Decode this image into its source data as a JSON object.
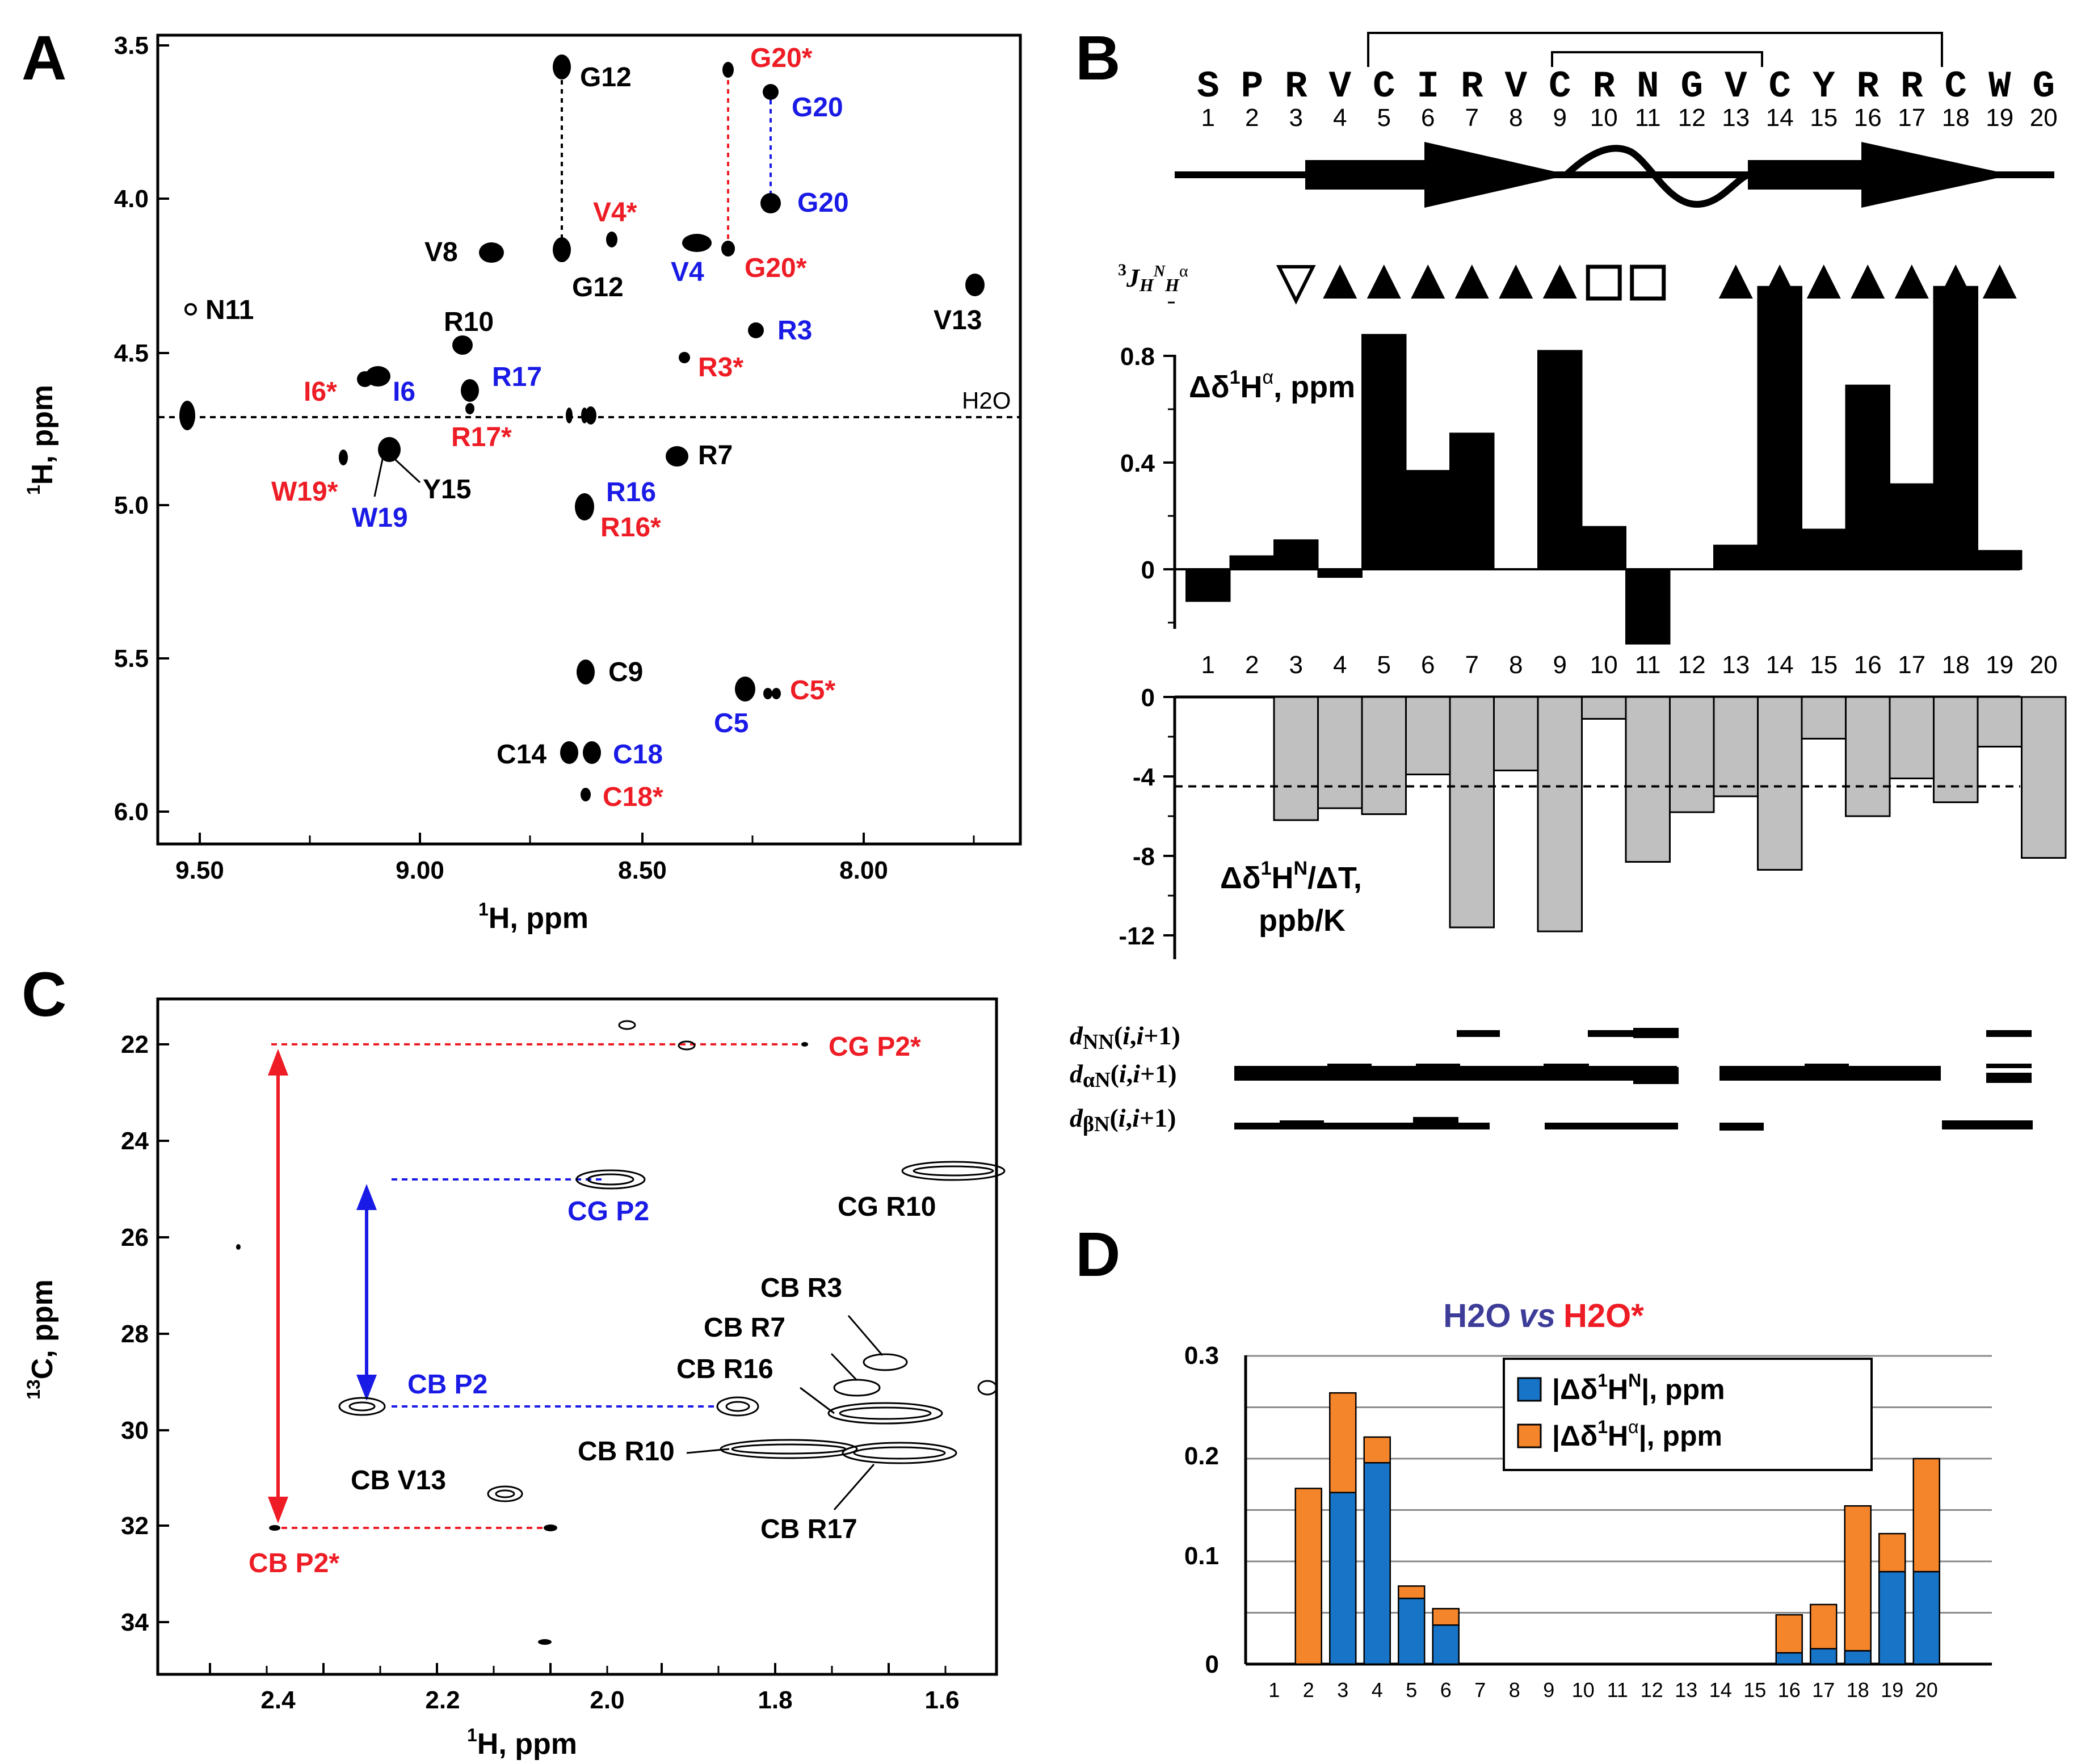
{
  "panels": {
    "A": "A",
    "B": "B",
    "C": "C",
    "D": "D"
  },
  "colors": {
    "black": "#000000",
    "blue": "#1a1ae6",
    "red": "#ee1c25",
    "gray": "#c0c0c0",
    "orange": "#f5852a",
    "steelblue": "#1874c6",
    "darkblue": "#3d3d99"
  },
  "panel_a": {
    "x_label_pre": "1",
    "x_label": "H, ppm",
    "y_label_pre": "1",
    "y_label": "H, ppm",
    "x_ticks": [
      "9.50",
      "9.00",
      "8.50",
      "8.00"
    ],
    "y_ticks": [
      "3.5",
      "4.0",
      "4.5",
      "5.0",
      "5.5",
      "6.0"
    ],
    "water": "H2O",
    "peak_labels": [
      {
        "t": "G12",
        "c": "black"
      },
      {
        "t": "G20*",
        "c": "red"
      },
      {
        "t": "G20",
        "c": "blue"
      },
      {
        "t": "G20",
        "c": "blue"
      },
      {
        "t": "V4*",
        "c": "red"
      },
      {
        "t": "V8",
        "c": "black"
      },
      {
        "t": "G12",
        "c": "black"
      },
      {
        "t": "V4",
        "c": "blue"
      },
      {
        "t": "G20*",
        "c": "red"
      },
      {
        "t": "N11",
        "c": "black"
      },
      {
        "t": "V13",
        "c": "black"
      },
      {
        "t": "R10",
        "c": "black"
      },
      {
        "t": "R3",
        "c": "blue"
      },
      {
        "t": "R3*",
        "c": "red"
      },
      {
        "t": "I6*",
        "c": "red"
      },
      {
        "t": "I6",
        "c": "blue"
      },
      {
        "t": "R17",
        "c": "blue"
      },
      {
        "t": "R17*",
        "c": "red"
      },
      {
        "t": "R7",
        "c": "black"
      },
      {
        "t": "W19*",
        "c": "red"
      },
      {
        "t": "Y15",
        "c": "black"
      },
      {
        "t": "W19",
        "c": "blue"
      },
      {
        "t": "R16",
        "c": "blue"
      },
      {
        "t": "R16*",
        "c": "red"
      },
      {
        "t": "C9",
        "c": "black"
      },
      {
        "t": "C5*",
        "c": "red"
      },
      {
        "t": "C5",
        "c": "blue"
      },
      {
        "t": "C14",
        "c": "black"
      },
      {
        "t": "C18",
        "c": "blue"
      },
      {
        "t": "C18*",
        "c": "red"
      }
    ]
  },
  "panel_b": {
    "sequence": [
      "S",
      "P",
      "R",
      "V",
      "C",
      "I",
      "R",
      "V",
      "C",
      "R",
      "N",
      "G",
      "V",
      "C",
      "Y",
      "R",
      "R",
      "C",
      "W",
      "G"
    ],
    "numbers": [
      "1",
      "2",
      "3",
      "4",
      "5",
      "6",
      "7",
      "8",
      "9",
      "10",
      "11",
      "12",
      "13",
      "14",
      "15",
      "16",
      "17",
      "18",
      "19",
      "20"
    ],
    "j_label": {
      "pre": "3",
      "j": "J",
      "h": "H",
      "n": "N",
      "h2": "H",
      "alpha": "α"
    },
    "j_symbols": [
      "",
      "",
      "open-down-triangle",
      "up-triangle",
      "up-triangle",
      "up-triangle",
      "up-triangle",
      "up-triangle",
      "up-triangle",
      "open-square",
      "open-square",
      "",
      "up-triangle",
      "up-triangle",
      "up-triangle",
      "up-triangle",
      "up-triangle",
      "up-triangle",
      "up-triangle",
      ""
    ],
    "ha_title": {
      "delta": "Δδ",
      "sup1": "1",
      "h": "H",
      "alpha": "α",
      "unit": ", ppm"
    },
    "ha_ticks": [
      "0.8",
      "0.4",
      "0"
    ],
    "hn_title_line1": {
      "delta": "Δδ",
      "sup1": "1",
      "h": "H",
      "n": "N",
      "rest": "/ΔT,"
    },
    "hn_title_line2": "ppb/K",
    "hn_ticks": [
      "0",
      "-4",
      "-8",
      "-12"
    ],
    "noe_labels": [
      {
        "d": "d",
        "sub": "NN",
        "rest": "(",
        "i1": "i",
        "mid": ",",
        "i2": "i",
        "end": "+1)"
      },
      {
        "d": "d",
        "sub": "αN",
        "rest": "(",
        "i1": "i",
        "mid": ",",
        "i2": "i",
        "end": "+1)"
      },
      {
        "d": "d",
        "sub": "βN",
        "rest": "(",
        "i1": "i",
        "mid": ",",
        "i2": "i",
        "end": "+1)"
      }
    ]
  },
  "panel_c": {
    "x_label_pre": "1",
    "x_label": "H, ppm",
    "y_label_pre": "13",
    "y_label": "C, ppm",
    "x_ticks": [
      "2.4",
      "2.2",
      "2.0",
      "1.8",
      "1.6"
    ],
    "y_ticks": [
      "22",
      "24",
      "26",
      "28",
      "30",
      "32",
      "34"
    ],
    "labels": [
      {
        "t": "CG P2*",
        "c": "red"
      },
      {
        "t": "CG P2",
        "c": "blue"
      },
      {
        "t": "CG R10",
        "c": "black"
      },
      {
        "t": "CB R3",
        "c": "black"
      },
      {
        "t": "CB R7",
        "c": "black"
      },
      {
        "t": "CB P2",
        "c": "blue"
      },
      {
        "t": "CB R16",
        "c": "black"
      },
      {
        "t": "CB R10",
        "c": "black"
      },
      {
        "t": "CB V13",
        "c": "black"
      },
      {
        "t": "CB R17",
        "c": "black"
      },
      {
        "t": "CB P2*",
        "c": "red"
      }
    ]
  },
  "panel_d": {
    "title_a": "H2O",
    "title_vs": "vs",
    "title_b": "H2O*",
    "legend_hn": {
      "open": "|Δδ",
      "sup1": "1",
      "h": "H",
      "n": "N",
      "close": "|, ppm"
    },
    "legend_ha": {
      "open": "|Δδ",
      "sup1": "1",
      "h": "H",
      "alpha": "α",
      "close": "|, ppm"
    },
    "y_ticks": [
      "0.3",
      "0.2",
      "0.1",
      "0"
    ]
  },
  "chart_data": [
    {
      "type": "bar",
      "title": "Δδ1Hα, ppm",
      "categories": [
        "1",
        "2",
        "3",
        "4",
        "5",
        "6",
        "7",
        "8",
        "9",
        "10",
        "11",
        "12",
        "13",
        "14",
        "15",
        "16",
        "17",
        "18",
        "19",
        "20"
      ],
      "values": [
        -0.12,
        0.05,
        0.11,
        -0.03,
        0.88,
        0.37,
        0.51,
        0.0,
        0.82,
        0.16,
        -0.28,
        0.0,
        0.09,
        1.06,
        0.15,
        0.69,
        0.32,
        1.06,
        0.07,
        0.0
      ],
      "ylim": [
        -0.3,
        1.15
      ]
    },
    {
      "type": "bar",
      "title": "Δδ1HN/ΔT, ppb/K",
      "categories": [
        "1",
        "2",
        "3",
        "4",
        "5",
        "6",
        "7",
        "8",
        "9",
        "10",
        "11",
        "12",
        "13",
        "14",
        "15",
        "16",
        "17",
        "18",
        "19",
        "20"
      ],
      "values": [
        null,
        null,
        -6.2,
        -5.6,
        -5.9,
        -3.9,
        -11.6,
        -3.7,
        -11.8,
        -1.1,
        -8.3,
        -5.8,
        -5.0,
        -8.7,
        -2.1,
        -6.0,
        -4.1,
        -5.3,
        -2.5,
        -8.1
      ],
      "ylim": [
        -13,
        0
      ],
      "reference_line": -4.5
    },
    {
      "type": "bar",
      "title": "H2O vs H2O*",
      "stacked": true,
      "categories": [
        "1",
        "2",
        "3",
        "4",
        "5",
        "6",
        "7",
        "8",
        "9",
        "10",
        "11",
        "12",
        "13",
        "14",
        "15",
        "16",
        "17",
        "18",
        "19",
        "20"
      ],
      "series": [
        {
          "name": "|Δδ1HN|, ppm",
          "values": [
            0,
            0.0,
            0.167,
            0.196,
            0.064,
            0.038,
            0,
            0,
            0,
            0,
            0,
            0,
            0,
            0,
            0,
            0.011,
            0.015,
            0.013,
            0.09,
            0.09
          ]
        },
        {
          "name": "|Δδ1Hα|, ppm",
          "values": [
            0,
            0.171,
            0.097,
            0.025,
            0.012,
            0.016,
            0,
            0,
            0,
            0,
            0,
            0,
            0,
            0,
            0,
            0.037,
            0.043,
            0.141,
            0.037,
            0.11
          ]
        }
      ],
      "ylim": [
        0,
        0.3
      ]
    }
  ]
}
